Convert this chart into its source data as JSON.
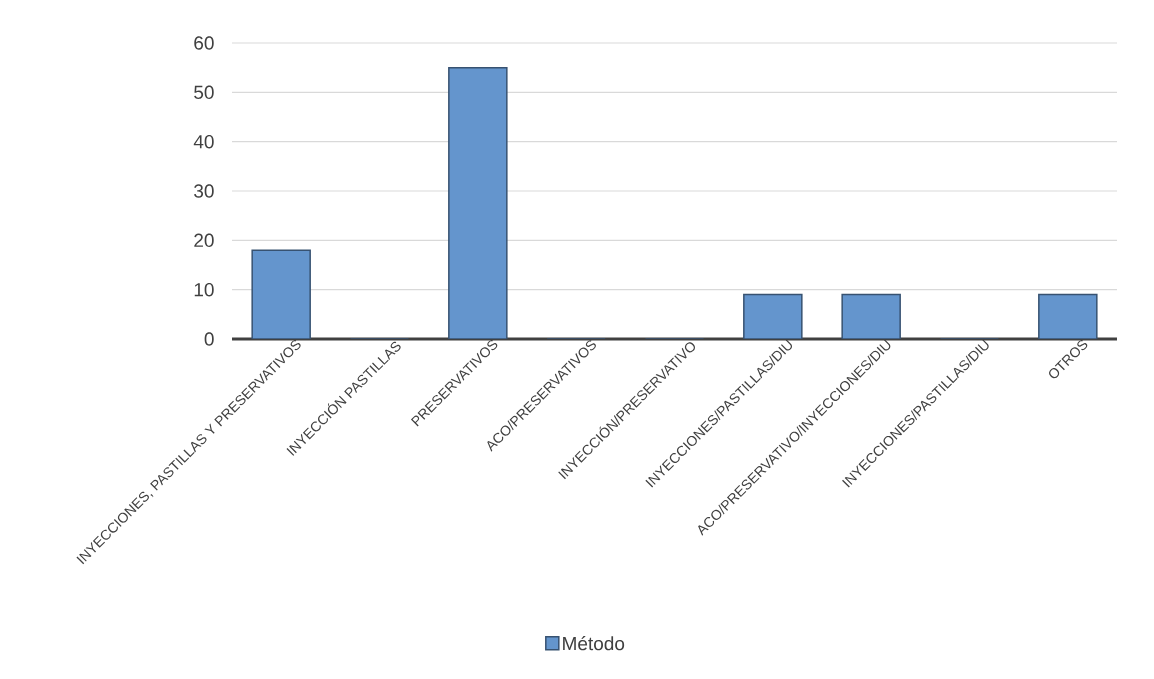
{
  "chart_data": {
    "type": "bar",
    "categories": [
      "INYECCIONES, PASTILLAS Y PRESERVATIVOS",
      "INYECCIÓN PASTILLAS",
      "PRESERVATIVOS",
      "ACO/PRESERVATIVOS",
      "INYECCIÓN/PRESERVATIVO",
      "INYECCIONES/PASTILLAS/DIU",
      "ACO/PRESERVATIVO/INYECCIONES/DIU",
      "INYECCIONES/PASTILLAS/DIU",
      "OTROS"
    ],
    "series": [
      {
        "name": "Método",
        "color": "#6495cd",
        "values": [
          18,
          0,
          55,
          0,
          0,
          9,
          9,
          0,
          9
        ]
      }
    ],
    "ylim": [
      0,
      60
    ],
    "yticks": [
      0,
      10,
      20,
      30,
      40,
      50,
      60
    ],
    "grid": "y",
    "legend": "bottom"
  }
}
